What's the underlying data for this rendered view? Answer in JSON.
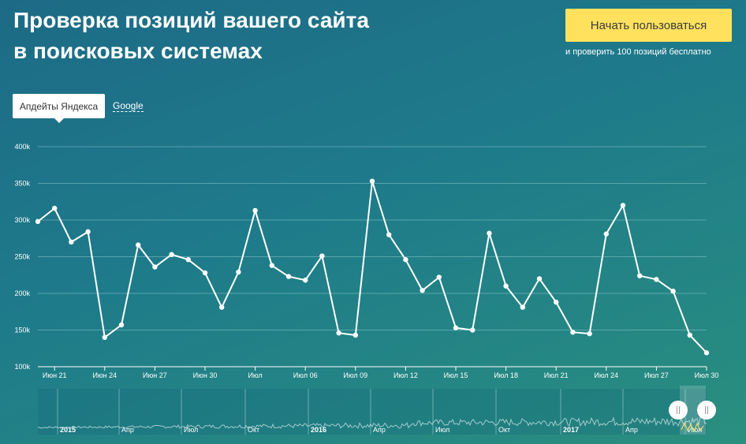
{
  "header": {
    "title_line1": "Проверка позиций вашего сайта",
    "title_line2": "в поисковых системах",
    "cta_label": "Начать пользоваться",
    "cta_note": "и проверить 100 позиций бесплатно"
  },
  "tabs": [
    {
      "label": "Апдейты Яндекса",
      "active": true
    },
    {
      "label": "Google",
      "active": false
    }
  ],
  "colors": {
    "line": "#ffffff",
    "grid": "#9fd3d6",
    "cta": "#ffe15e",
    "navigator_handle": "#ffffff"
  },
  "chart_data": {
    "type": "line",
    "ylim": [
      100000,
      400000
    ],
    "y_ticks": [
      "100k",
      "150k",
      "200k",
      "250k",
      "300k",
      "350k",
      "400k"
    ],
    "y_tick_values": [
      100000,
      150000,
      200000,
      250000,
      300000,
      350000,
      400000
    ],
    "x_start": "2017-06-20",
    "x_tick_labels": [
      "Июн 21",
      "Июн 24",
      "Июн 27",
      "Июн 30",
      "Июл",
      "Июл 06",
      "Июл 09",
      "Июл 12",
      "Июл 15",
      "Июл 18",
      "Июл 21",
      "Июл 24",
      "Июл 27",
      "Июл 30"
    ],
    "series": [
      {
        "values": [
          298000,
          316000,
          270000,
          284000,
          140000,
          157000,
          266000,
          236000,
          253000,
          246000,
          228000,
          181000,
          229000,
          313000,
          238000,
          223000,
          218000,
          251000,
          146000,
          143000,
          353000,
          280000,
          246000,
          204000,
          222000,
          153000,
          150000,
          282000,
          210000,
          181000,
          220000,
          188000,
          147000,
          145000,
          281000,
          320000,
          224000,
          219000,
          203000,
          143000,
          119000
        ]
      }
    ],
    "navigator_labels": [
      "2015",
      "Апр",
      "Июл",
      "Окт",
      "2016",
      "Апр",
      "Июл",
      "Окт",
      "2017",
      "Апр",
      "Июл"
    ]
  }
}
